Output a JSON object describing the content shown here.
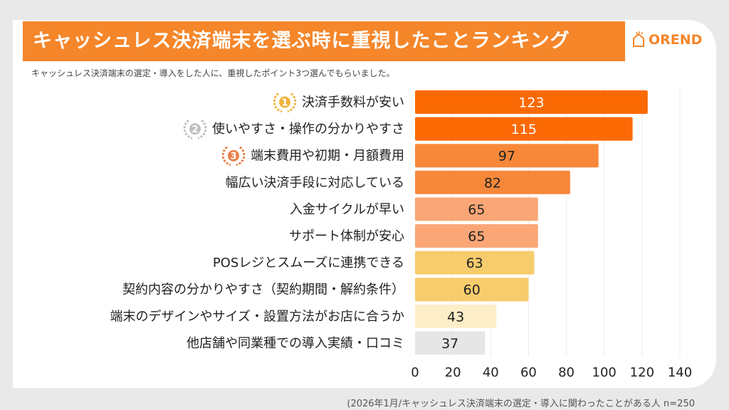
{
  "title": "キャッシュレス決済端末を選ぶ時に重視したことランキング",
  "logo_text": "OREND",
  "subtitle": "キャッシュレス決済端末の選定・導入をした人に、重視したポイント3つ選んでもらいました。",
  "footer": "(2026年1月/キャッシュレス決済端末の選定・導入に関わったことがある人  n=250",
  "chart_data": {
    "type": "bar",
    "orientation": "horizontal",
    "categories": [
      "決済手数料が安い",
      "使いやすさ・操作の分かりやすさ",
      "端末費用や初期・月額費用",
      "幅広い決済手段に対応している",
      "入金サイクルが早い",
      "サポート体制が安心",
      "POSレジとスムーズに連携できる",
      "契約内容の分かりやすさ（契約期間・解約条件）",
      "端末のデザインやサイズ・設置方法がお店に合うか",
      "他店舗や同業種での導入実績・口コミ"
    ],
    "values": [
      123,
      115,
      97,
      82,
      65,
      65,
      63,
      60,
      43,
      37
    ],
    "rank_badges": [
      "1",
      "2",
      "3"
    ],
    "rank_badge_colors": [
      "#f0b440",
      "#c0c0c0",
      "#e8814a"
    ],
    "bar_colors": [
      "#fb6a05",
      "#fb6a05",
      "#f7883a",
      "#f7883a",
      "#fba676",
      "#fba676",
      "#f7cc6c",
      "#f7cc6c",
      "#fdeec8",
      "#e6e6e6"
    ],
    "label_colors": [
      "#ffffff",
      "#ffffff",
      "#222222",
      "#222222",
      "#222222",
      "#222222",
      "#222222",
      "#222222",
      "#222222",
      "#222222"
    ],
    "xlim": [
      0,
      140
    ],
    "xticks": [
      0,
      20,
      40,
      60,
      80,
      100,
      120,
      140
    ],
    "grid": true
  }
}
